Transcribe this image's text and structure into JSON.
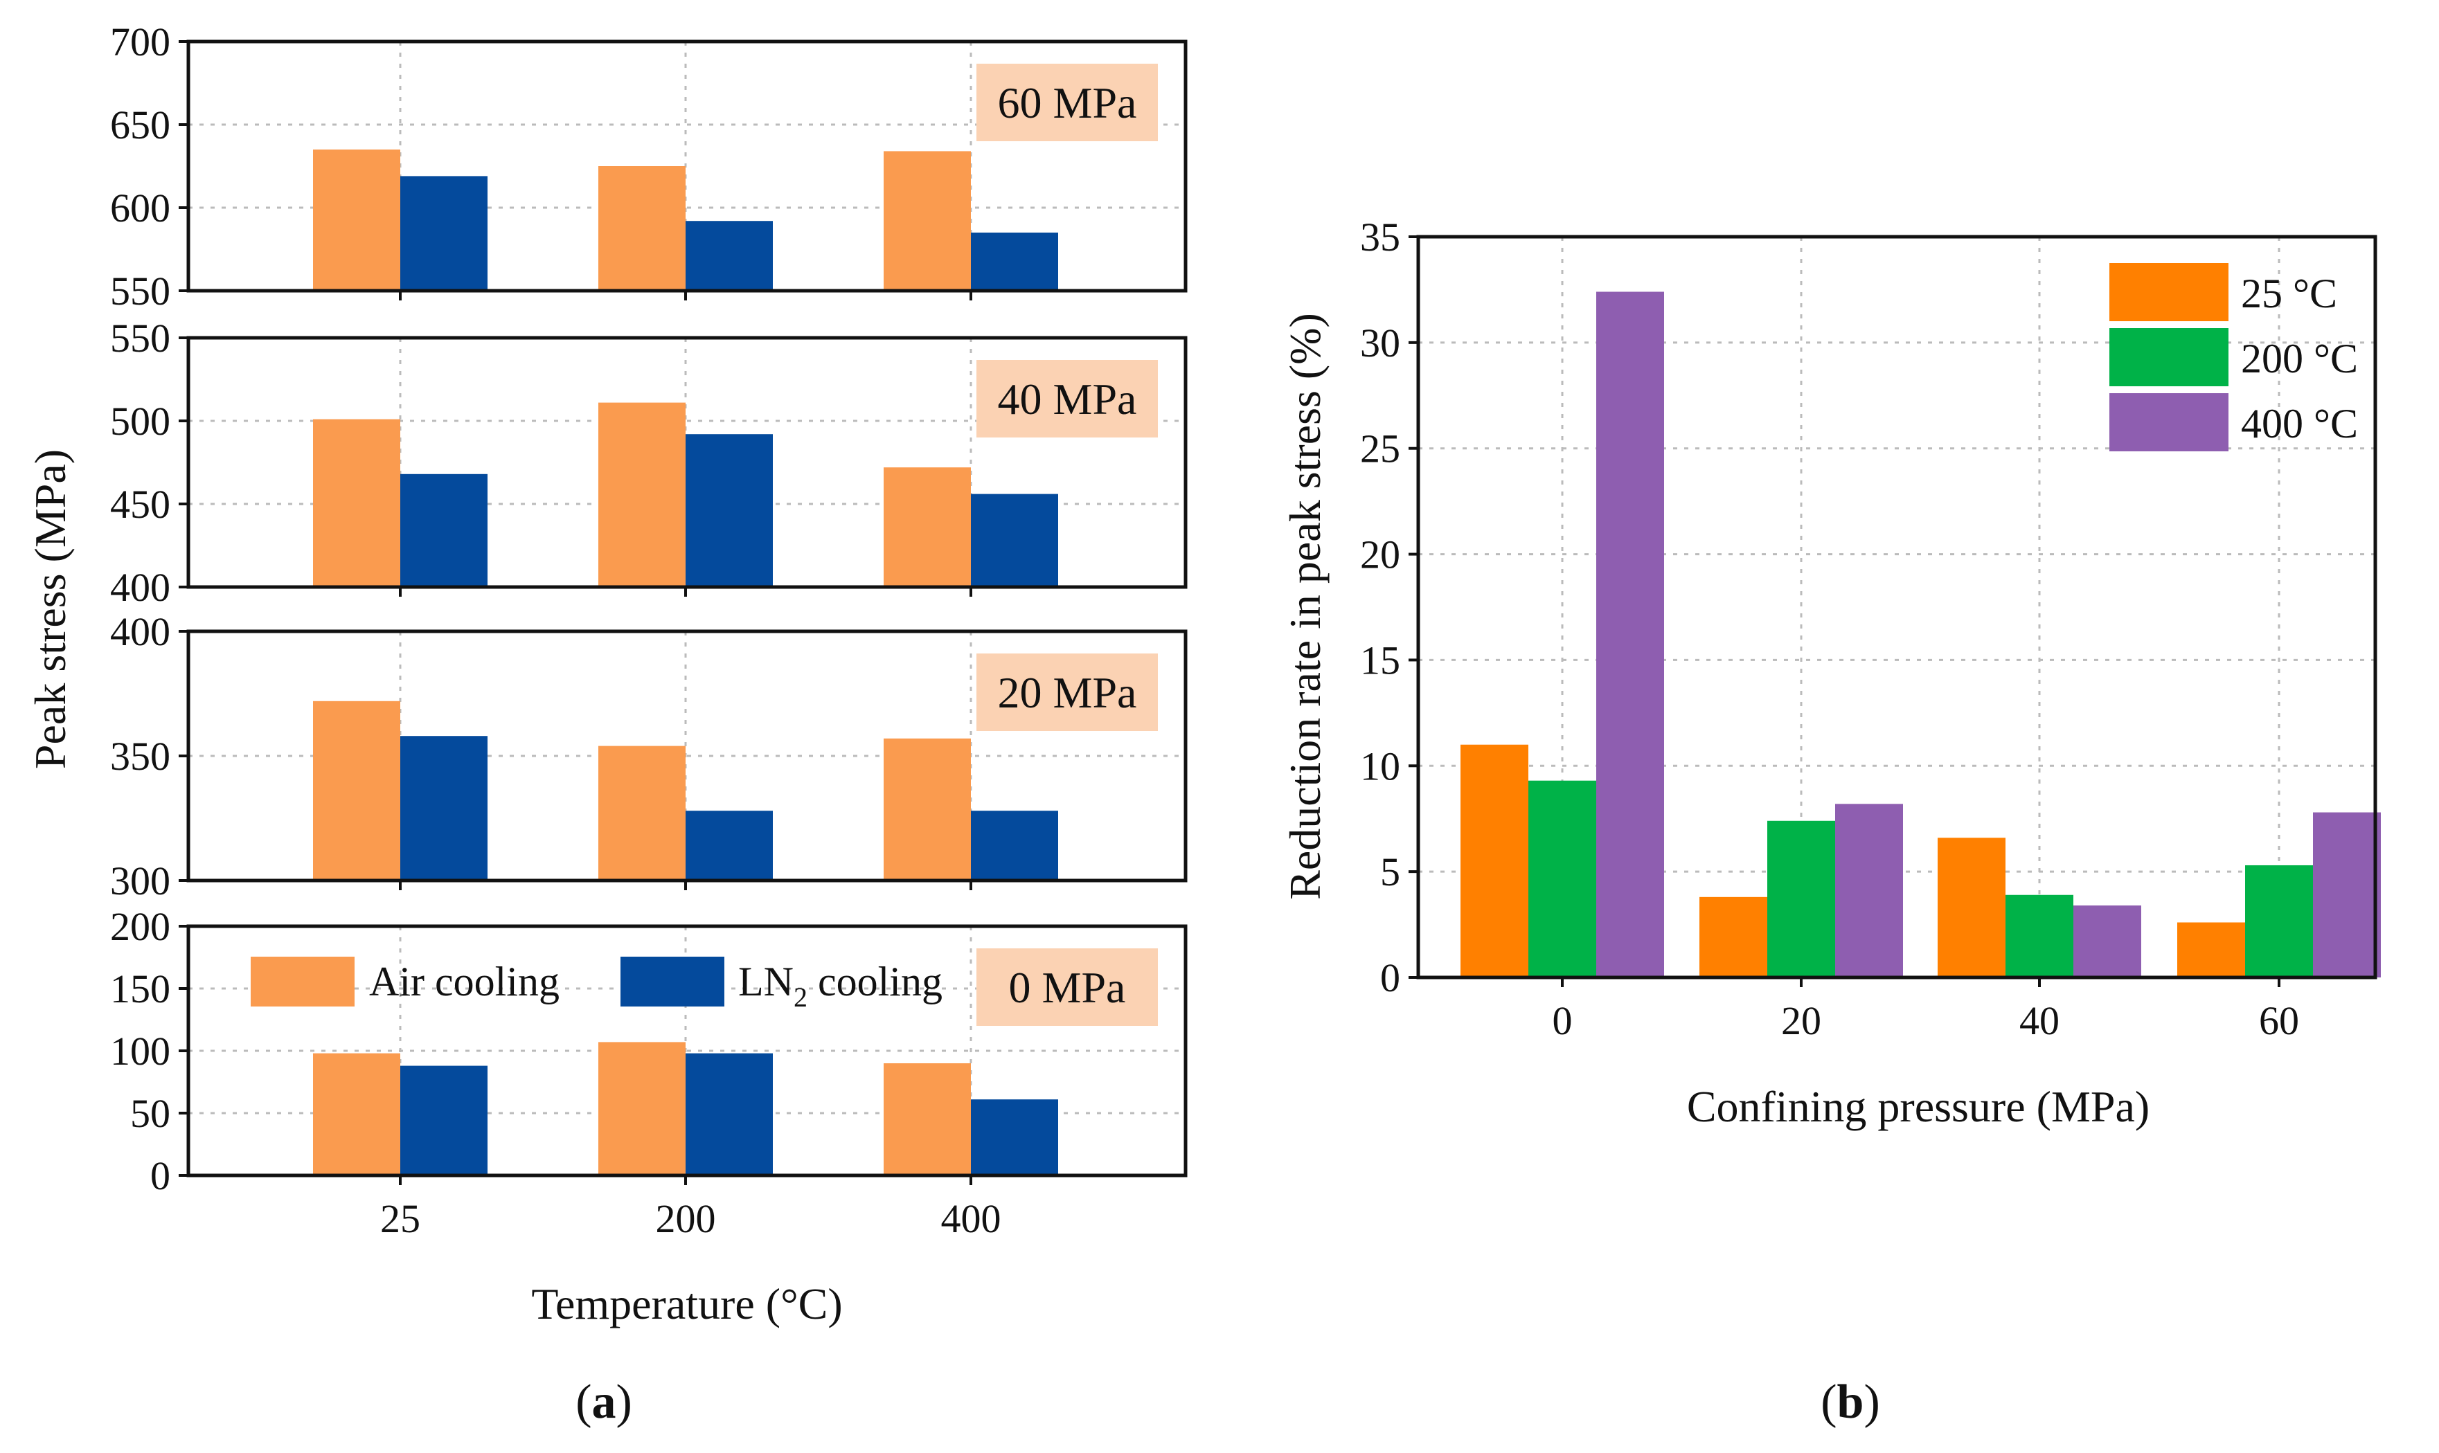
{
  "colors": {
    "air": "#FA9B4F",
    "ln2": "#044A9C",
    "c25": "#FF8000",
    "c200": "#00B248",
    "c400": "#8E5EB0",
    "label_bg": "#FBD2B3",
    "grid": "#BBBBBB",
    "axis": "#111111"
  },
  "chart_data": [
    {
      "id": "a",
      "type": "bar",
      "panel_label": "a",
      "panel_label_text": [
        "(",
        "a",
        ")"
      ],
      "xlabel": "Temperature (°C)",
      "ylabel": "Peak stress (MPa)",
      "categories": [
        "25",
        "200",
        "400"
      ],
      "legend": [
        {
          "label": "Air cooling",
          "color_key": "air"
        },
        {
          "label": "LN",
          "sub": "2",
          "suffix": " cooling",
          "color_key": "ln2"
        }
      ],
      "subplots": [
        {
          "label": "60 MPa",
          "ylim": [
            550,
            700
          ],
          "yticks": [
            550,
            600,
            650,
            700
          ],
          "series": [
            {
              "name": "Air cooling",
              "color_key": "air",
              "values": [
                635,
                625,
                634
              ]
            },
            {
              "name": "LN2 cooling",
              "color_key": "ln2",
              "values": [
                619,
                592,
                585
              ]
            }
          ]
        },
        {
          "label": "40 MPa",
          "ylim": [
            400,
            550
          ],
          "yticks": [
            400,
            450,
            500,
            550
          ],
          "series": [
            {
              "name": "Air cooling",
              "color_key": "air",
              "values": [
                501,
                511,
                472
              ]
            },
            {
              "name": "LN2 cooling",
              "color_key": "ln2",
              "values": [
                468,
                492,
                456
              ]
            }
          ]
        },
        {
          "label": "20 MPa",
          "ylim": [
            300,
            400
          ],
          "yticks": [
            300,
            350,
            400
          ],
          "series": [
            {
              "name": "Air cooling",
              "color_key": "air",
              "values": [
                372,
                354,
                357
              ]
            },
            {
              "name": "LN2 cooling",
              "color_key": "ln2",
              "values": [
                358,
                328,
                328
              ]
            }
          ]
        },
        {
          "label": "0 MPa",
          "ylim": [
            0,
            200
          ],
          "yticks": [
            0,
            50,
            100,
            150,
            200
          ],
          "series": [
            {
              "name": "Air cooling",
              "color_key": "air",
              "values": [
                98,
                107,
                90
              ]
            },
            {
              "name": "LN2 cooling",
              "color_key": "ln2",
              "values": [
                88,
                98,
                61
              ]
            }
          ]
        }
      ]
    },
    {
      "id": "b",
      "type": "bar",
      "panel_label": "b",
      "panel_label_text": [
        "(",
        "b",
        ")"
      ],
      "xlabel": "Confining pressure (MPa)",
      "ylabel": "Reduction rate in peak stress (%)",
      "categories": [
        "0",
        "20",
        "40",
        "60"
      ],
      "ylim": [
        0,
        35
      ],
      "yticks": [
        0,
        5,
        10,
        15,
        20,
        25,
        30,
        35
      ],
      "series": [
        {
          "name": "25 °C",
          "color_key": "c25",
          "values": [
            11.0,
            3.8,
            6.6,
            2.6
          ]
        },
        {
          "name": "200 °C",
          "color_key": "c200",
          "values": [
            9.3,
            7.4,
            3.9,
            5.3
          ]
        },
        {
          "name": "400 °C",
          "color_key": "c400",
          "values": [
            32.4,
            8.2,
            3.4,
            7.8
          ]
        }
      ]
    }
  ]
}
